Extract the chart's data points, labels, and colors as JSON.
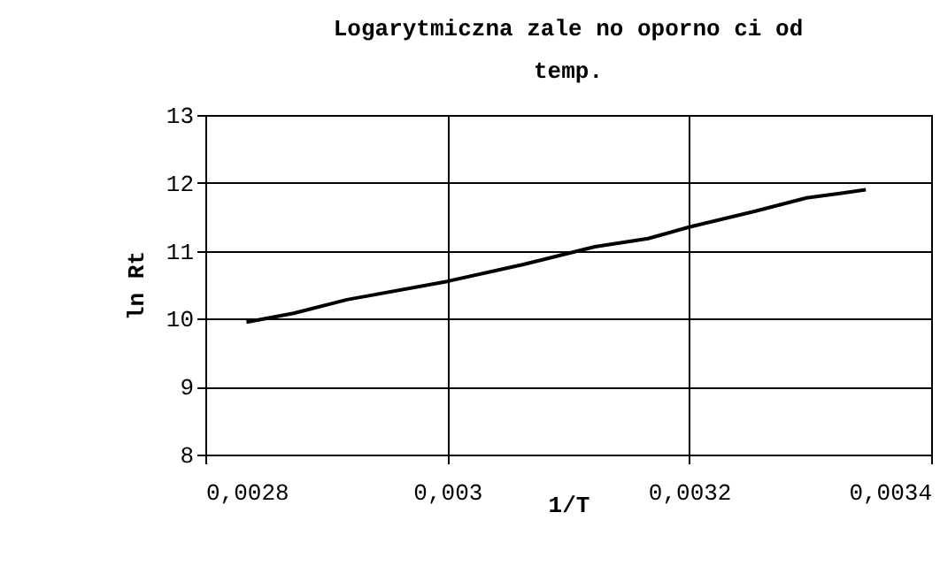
{
  "chart_data": {
    "type": "line",
    "title": "Logarytmiczna zale no   oporno ci od temp.",
    "xlabel": "1/T",
    "ylabel": "ln Rt",
    "x": [
      0.002834,
      0.002873,
      0.002917,
      0.003,
      0.003063,
      0.003122,
      0.003166,
      0.0032,
      0.003254,
      0.003297,
      0.003327,
      0.003346
    ],
    "series": [
      {
        "color": "#000000",
        "values": [
          9.95,
          10.08,
          10.28,
          10.55,
          10.8,
          11.06,
          11.18,
          11.35,
          11.58,
          11.78,
          11.85,
          11.9
        ]
      }
    ],
    "xlim": [
      0.0028,
      0.0034
    ],
    "xticks": [
      {
        "value": 0.0028,
        "label": "0,0028"
      },
      {
        "value": 0.003,
        "label": "0,003"
      },
      {
        "value": 0.0032,
        "label": "0,0032"
      },
      {
        "value": 0.0034,
        "label": "0,0034"
      }
    ],
    "ylim": [
      8,
      13
    ],
    "yticks": [
      8,
      9,
      10,
      11,
      12,
      13
    ],
    "grid": true,
    "legend": false,
    "marker": "none",
    "line_style": "solid"
  }
}
